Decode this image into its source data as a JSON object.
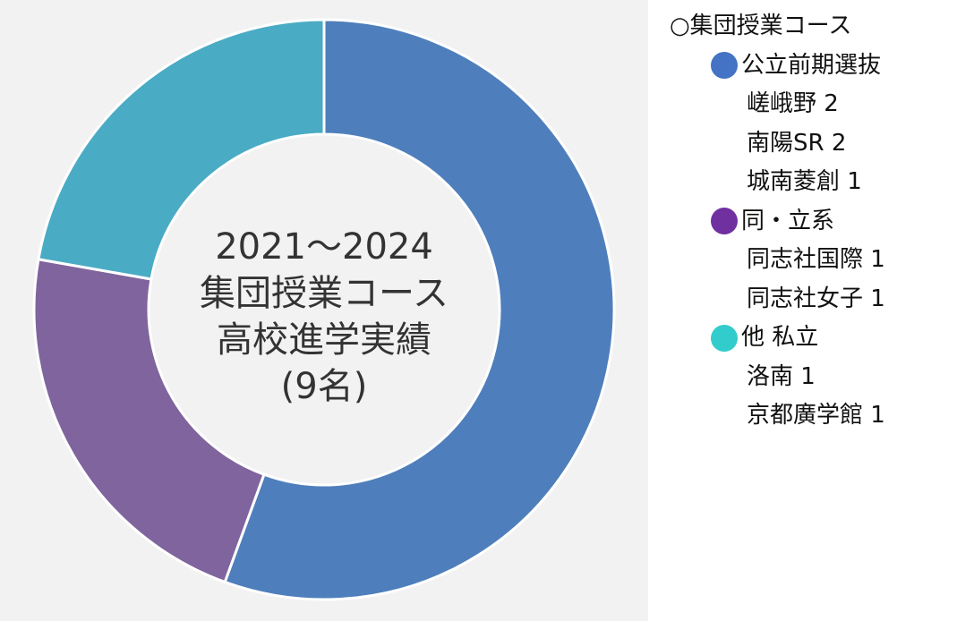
{
  "chart_data": {
    "type": "pie",
    "title": "",
    "center_label": [
      "2021～2024",
      "集団授業コース",
      "高校進学実績",
      "(9名)"
    ],
    "categories": [
      "公立前期選抜",
      "同・立系",
      "他 私立"
    ],
    "values": [
      5,
      2,
      2
    ],
    "colors": [
      "#4e7fbc",
      "#7f649d",
      "#4aabc4"
    ],
    "legend_position": "right"
  },
  "legend": {
    "heading": "○集団授業コース",
    "groups": [
      {
        "title": "公立前期選抜",
        "dot_color": "#4472c4",
        "items": [
          "嵯峨野 2",
          "南陽SR 2",
          "城南菱創 1"
        ]
      },
      {
        "title": "同・立系",
        "dot_color": "#7030a0",
        "items": [
          "同志社国際 1",
          "同志社女子 1"
        ]
      },
      {
        "title": "他 私立",
        "dot_color": "#33cccc",
        "items": [
          "洛南 1",
          "京都廣学館 1"
        ]
      }
    ]
  }
}
